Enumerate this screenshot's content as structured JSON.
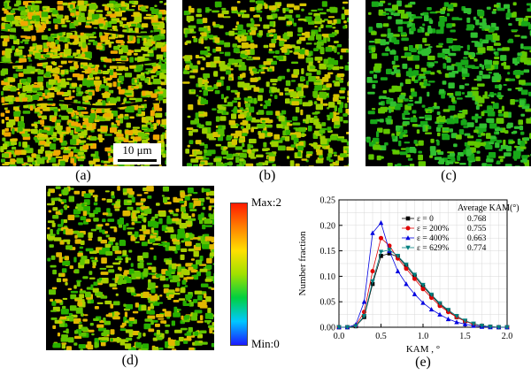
{
  "scale_bar": {
    "label": "10 μm"
  },
  "panel_labels": {
    "a": "(a)",
    "b": "(b)",
    "c": "(c)",
    "d": "(d)",
    "e": "(e)"
  },
  "colorbar": {
    "max_label": "Max:2",
    "min_label": "Min:0",
    "colors": [
      "#1a1aff",
      "#00c8ff",
      "#00d040",
      "#a0e000",
      "#ffe000",
      "#ff8000",
      "#ff1a00"
    ]
  },
  "maps": {
    "a": {
      "density": 0.86,
      "palette": [
        "#3ab000",
        "#6ec800",
        "#a8d400",
        "#d8c800",
        "#f0a800"
      ]
    },
    "b": {
      "density": 0.55,
      "palette": [
        "#30b000",
        "#58c000",
        "#9cd000",
        "#d6c400"
      ]
    },
    "c": {
      "density": 0.45,
      "palette": [
        "#18a818",
        "#30c030",
        "#60c800"
      ]
    },
    "d": {
      "density": 0.52,
      "palette": [
        "#28b000",
        "#60c400",
        "#a8d000",
        "#e0b800"
      ]
    }
  },
  "chart_data": {
    "type": "line",
    "xlabel": "KAM , °",
    "ylabel": "Number fraction",
    "xlim": [
      0.0,
      2.0
    ],
    "ylim": [
      0.0,
      0.25
    ],
    "xticks": [
      "0.0",
      "0.5",
      "1.0",
      "1.5",
      "2.0"
    ],
    "yticks": [
      "0.00",
      "0.05",
      "0.10",
      "0.15",
      "0.20",
      "0.25"
    ],
    "legend_title": "Average KAM(°)",
    "x": [
      0.0,
      0.1,
      0.2,
      0.3,
      0.4,
      0.5,
      0.6,
      0.7,
      0.8,
      0.9,
      1.0,
      1.1,
      1.2,
      1.3,
      1.4,
      1.5,
      1.6,
      1.7,
      1.8,
      1.9,
      2.0
    ],
    "series": [
      {
        "name": "ε = 0",
        "avg": "0.768",
        "color": "#000000",
        "marker": "square",
        "values": [
          0.0,
          0.0,
          0.002,
          0.02,
          0.085,
          0.14,
          0.145,
          0.138,
          0.12,
          0.1,
          0.08,
          0.062,
          0.045,
          0.032,
          0.02,
          0.012,
          0.006,
          0.003,
          0.001,
          0.0,
          0.0
        ]
      },
      {
        "name": "ε = 200%",
        "avg": "0.755",
        "color": "#e00000",
        "marker": "circle",
        "values": [
          0.0,
          0.0,
          0.003,
          0.03,
          0.11,
          0.175,
          0.16,
          0.135,
          0.115,
          0.095,
          0.075,
          0.058,
          0.042,
          0.03,
          0.02,
          0.012,
          0.006,
          0.003,
          0.001,
          0.0,
          0.0
        ]
      },
      {
        "name": "ε = 400%",
        "avg": "0.663",
        "color": "#0000e0",
        "marker": "triangle-up",
        "values": [
          0.0,
          0.0,
          0.005,
          0.05,
          0.185,
          0.205,
          0.15,
          0.11,
          0.085,
          0.065,
          0.048,
          0.035,
          0.025,
          0.016,
          0.01,
          0.006,
          0.003,
          0.001,
          0.0,
          0.0,
          0.0
        ]
      },
      {
        "name": "ε = 629%",
        "avg": "0.774",
        "color": "#008080",
        "marker": "triangle-down",
        "values": [
          0.0,
          0.0,
          0.002,
          0.022,
          0.09,
          0.148,
          0.152,
          0.14,
          0.123,
          0.103,
          0.083,
          0.064,
          0.047,
          0.034,
          0.022,
          0.013,
          0.007,
          0.003,
          0.001,
          0.0,
          0.0
        ]
      }
    ]
  }
}
